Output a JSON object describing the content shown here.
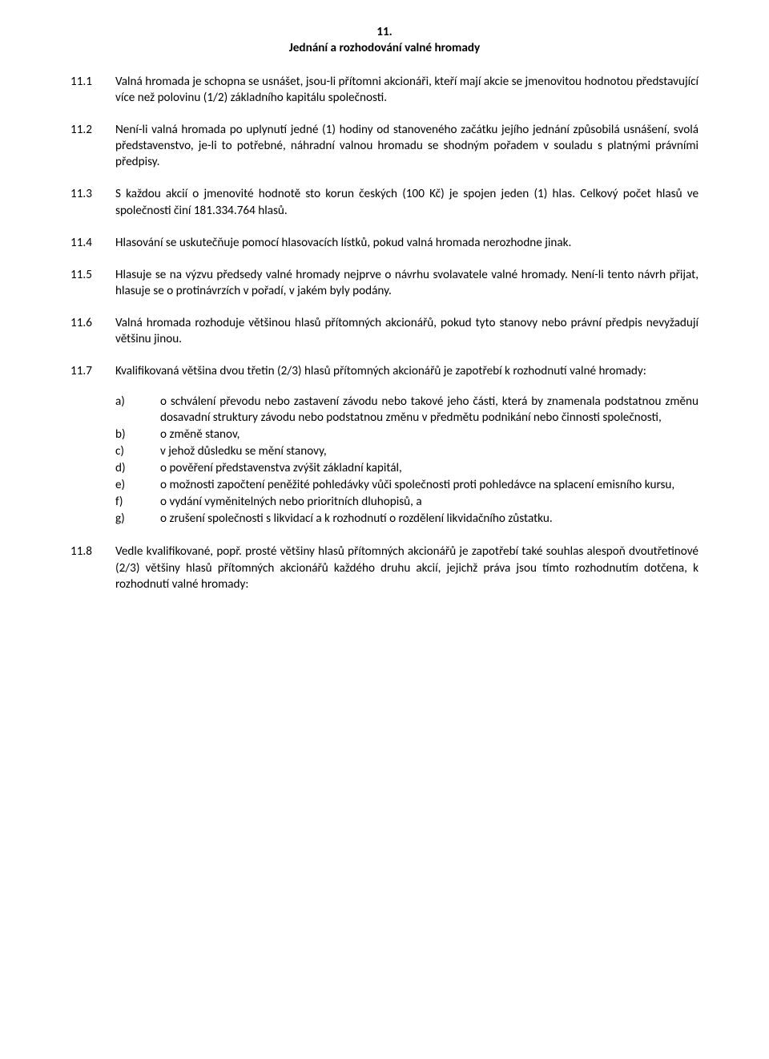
{
  "section": {
    "number": "11.",
    "title": "Jednání a rozhodování valné hromady"
  },
  "clauses": [
    {
      "num": "11.1",
      "text": "Valná hromada je schopna se usnášet, jsou-li přítomni akcionáři, kteří mají akcie se jmenovitou hodnotou představující více než polovinu (1/2) základního kapitálu společnosti."
    },
    {
      "num": "11.2",
      "text": "Není-li valná hromada po uplynutí jedné (1) hodiny od stanoveného začátku jejího jednání způsobilá usnášení, svolá představenstvo, je-li to potřebné, náhradní valnou hromadu se shodným pořadem v souladu s platnými právními předpisy."
    },
    {
      "num": "11.3",
      "text": "S každou akcií o jmenovité hodnotě sto korun českých (100 Kč) je spojen jeden (1) hlas. Celkový počet hlasů ve společnosti činí 181.334.764 hlasů."
    },
    {
      "num": "11.4",
      "text": "Hlasování se uskutečňuje pomocí hlasovacích lístků, pokud valná hromada nerozhodne jinak."
    },
    {
      "num": "11.5",
      "text": "Hlasuje se na výzvu předsedy valné hromady nejprve o návrhu svolavatele valné hromady. Není-li tento návrh přijat, hlasuje se o protinávrzích v pořadí, v jakém byly podány."
    },
    {
      "num": "11.6",
      "text": "Valná hromada rozhoduje většinou hlasů přítomných akcionářů, pokud tyto stanovy nebo právní předpis nevyžadují většinu jinou."
    },
    {
      "num": "11.7",
      "text": "Kvalifikovaná většina dvou třetin (2/3) hlasů přítomných akcionářů je zapotřebí k rozhodnutí valné hromady:",
      "sub": [
        {
          "letter": "a)",
          "text": "o schválení převodu nebo zastavení závodu nebo takové jeho části, která by znamenala podstatnou změnu dosavadní struktury závodu nebo podstatnou změnu v předmětu podnikání nebo činnosti společnosti,"
        },
        {
          "letter": "b)",
          "text": "o změně stanov,"
        },
        {
          "letter": "c)",
          "text": "v jehož důsledku se mění stanovy,"
        },
        {
          "letter": "d)",
          "text": "o pověření představenstva zvýšit základní kapitál,"
        },
        {
          "letter": "e)",
          "text": "o možnosti započtení peněžité pohledávky vůči společnosti proti pohledávce na splacení emisního kursu,"
        },
        {
          "letter": "f)",
          "text": "o vydání vyměnitelných nebo prioritních dluhopisů, a"
        },
        {
          "letter": "g)",
          "text": "o zrušení společnosti s likvidací a k rozhodnutí o rozdělení likvidačního zůstatku."
        }
      ]
    },
    {
      "num": "11.8",
      "text": "Vedle kvalifikované, popř. prosté většiny hlasů přítomných akcionářů je zapotřebí také souhlas alespoň dvoutřetinové (2/3) většiny hlasů přítomných akcionářů každého druhu akcií, jejichž práva jsou tímto rozhodnutím dotčena, k rozhodnutí valné hromady:"
    }
  ]
}
